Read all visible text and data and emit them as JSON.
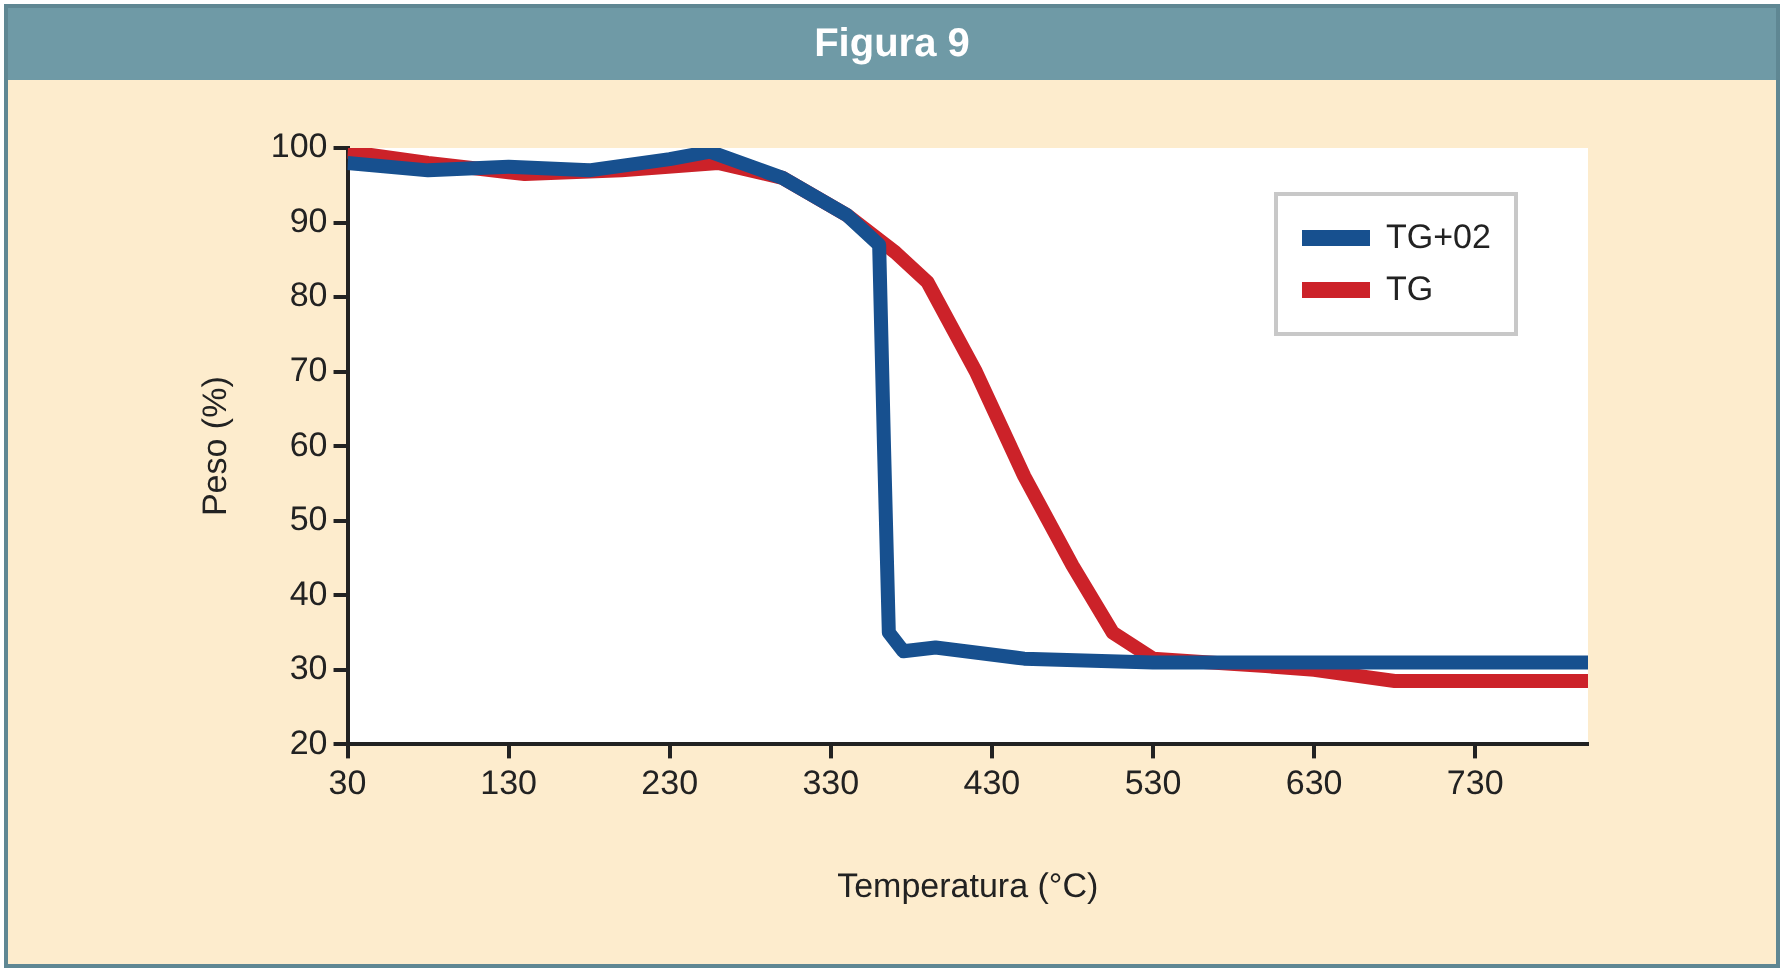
{
  "chart_data": {
    "type": "line",
    "title": "Figura 9",
    "xlabel": "Temperatura (°C)",
    "ylabel": "Peso (%)",
    "xlim": [
      30,
      800
    ],
    "xticks": [
      30,
      130,
      230,
      330,
      430,
      530,
      630,
      730
    ],
    "ylim": [
      20,
      100
    ],
    "yticks": [
      20,
      30,
      40,
      50,
      60,
      70,
      80,
      90,
      100
    ],
    "grid": false,
    "legend": "top right",
    "marker": "none",
    "line_style": "solid",
    "series": [
      {
        "name": "TG+02",
        "color": "#17508f",
        "x": [
          30,
          80,
          130,
          180,
          230,
          255,
          300,
          340,
          360,
          363,
          366,
          375,
          395,
          450,
          530,
          630,
          800
        ],
        "values": [
          98,
          97,
          97.5,
          97,
          98.5,
          99.5,
          96,
          91,
          87,
          60,
          35,
          32.5,
          33,
          31.5,
          31,
          31,
          31
        ]
      },
      {
        "name": "TG",
        "color": "#cc2229",
        "x": [
          30,
          80,
          140,
          200,
          260,
          300,
          340,
          370,
          390,
          420,
          450,
          480,
          505,
          530,
          600,
          630,
          680,
          800
        ],
        "values": [
          99.5,
          98,
          96.5,
          97,
          98,
          96,
          91,
          86,
          82,
          70,
          56,
          44,
          35,
          31.5,
          30.5,
          30,
          28.5,
          28.5
        ]
      }
    ]
  }
}
